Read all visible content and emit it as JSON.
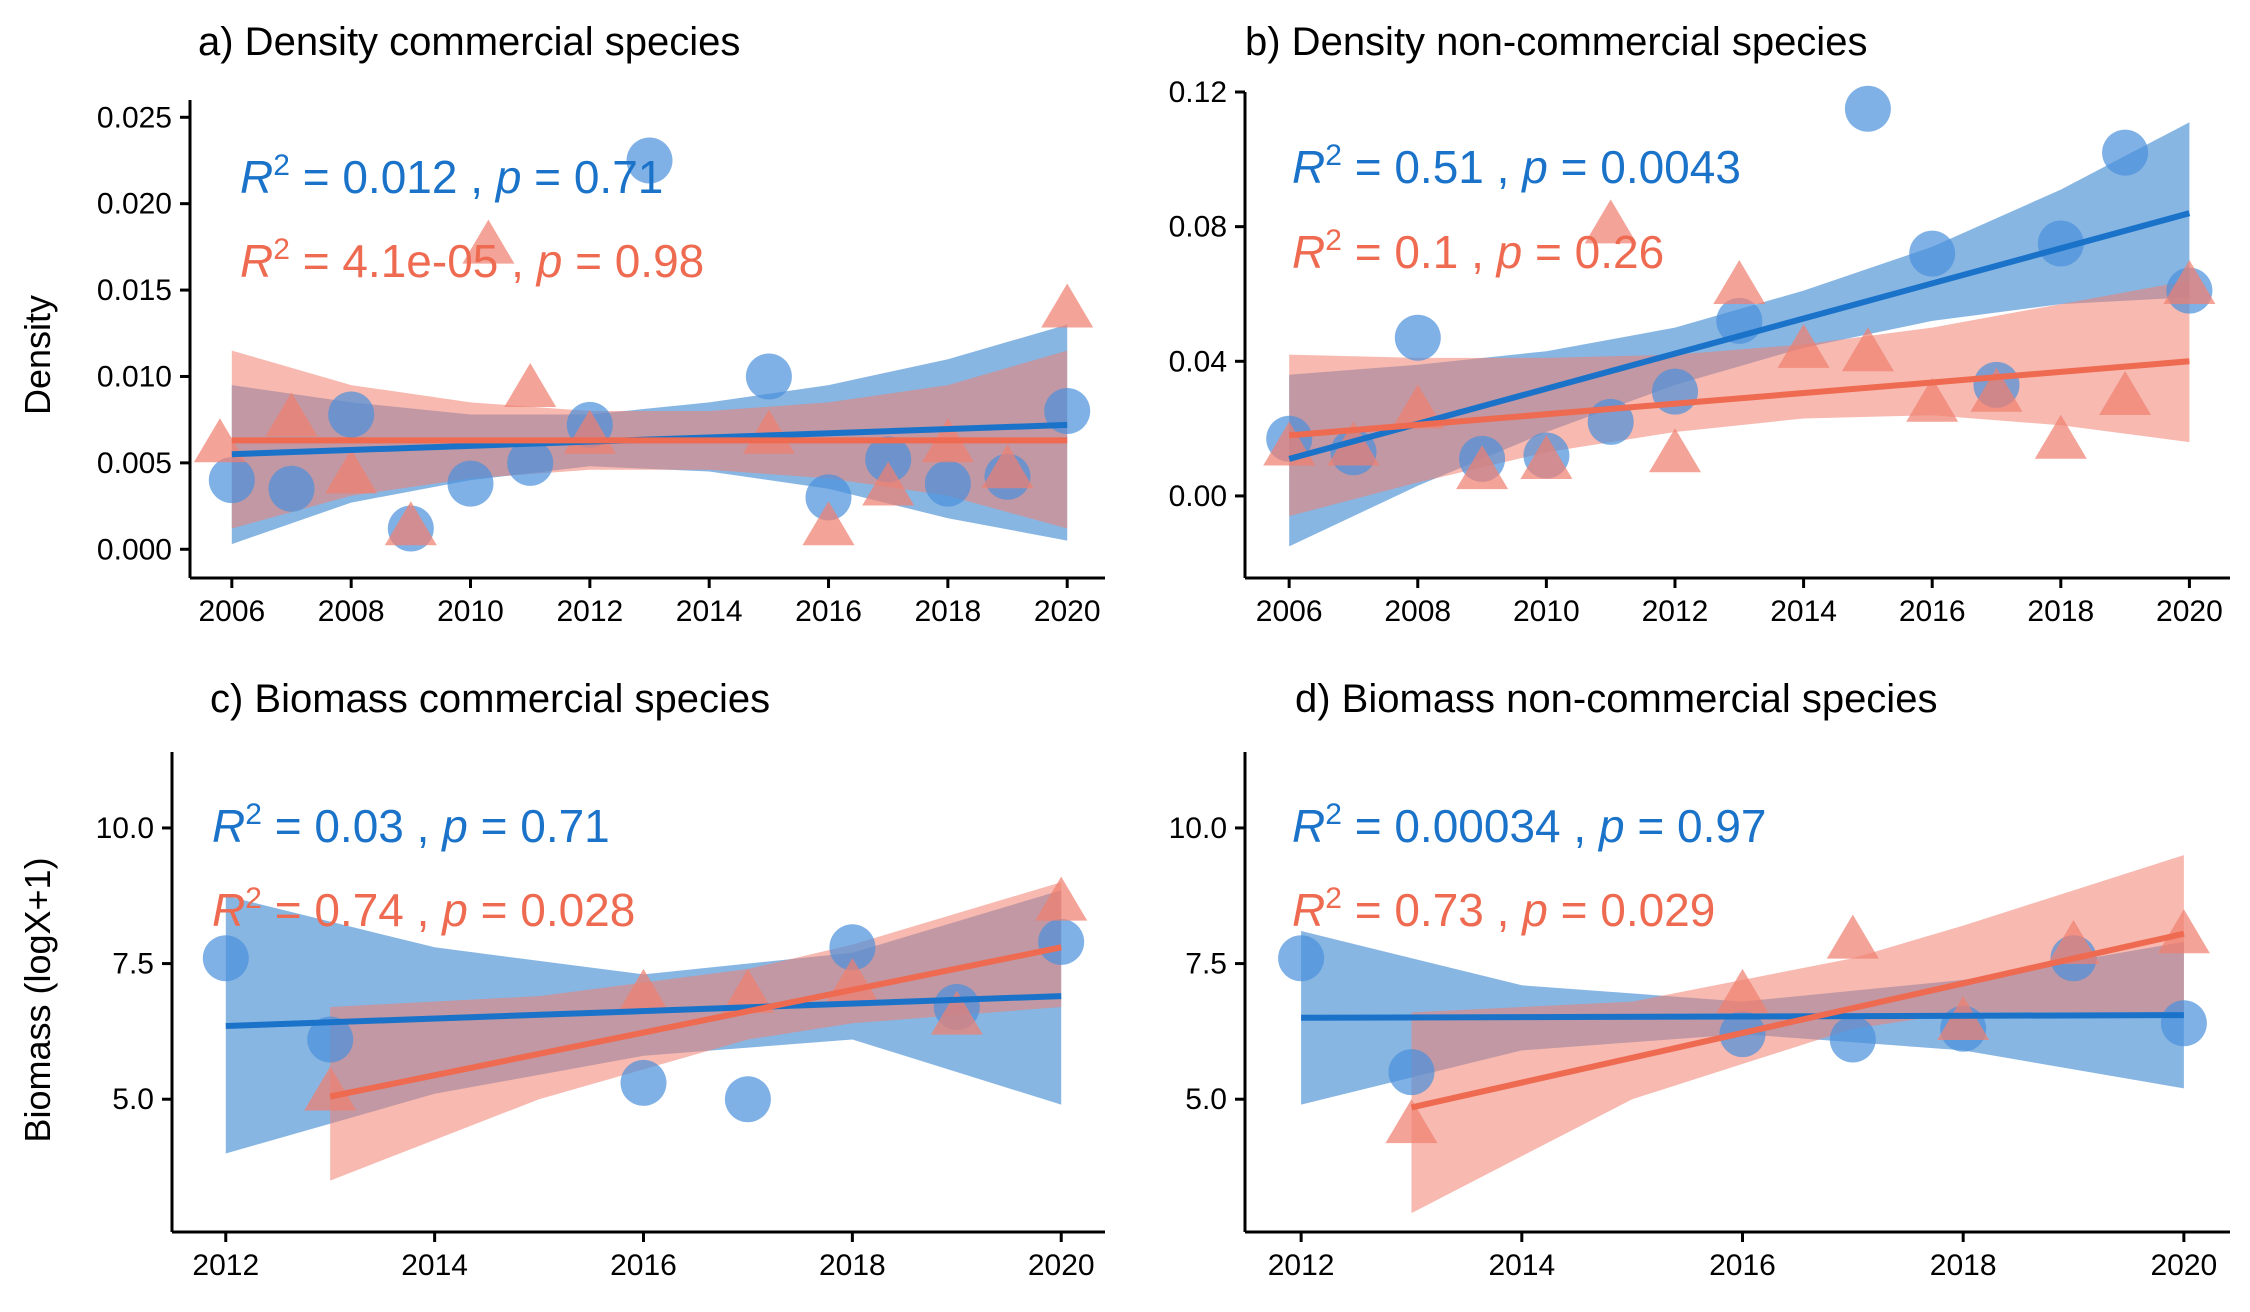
{
  "colors": {
    "blue": "#1a73c9",
    "blue_fill": "#1a73c9",
    "red": "#ee6a50",
    "red_fill": "#f08070",
    "overlap": "#8a5d82"
  },
  "y_labels": {
    "top": "Density",
    "bottom": "Biomass (logX+1)"
  },
  "chart_data": [
    {
      "id": "a",
      "type": "scatter",
      "title": "a) Density commercial species",
      "xlim": [
        2005.5,
        2020.6
      ],
      "ylim": [
        -0.0012,
        0.026
      ],
      "xticks": [
        2006,
        2008,
        2010,
        2012,
        2014,
        2016,
        2018,
        2020
      ],
      "yticks": [
        0.0,
        0.005,
        0.01,
        0.015,
        0.02,
        0.025
      ],
      "ytick_labels": [
        "0.000",
        "0.005",
        "0.010",
        "0.015",
        "0.020",
        "0.025"
      ],
      "series": [
        {
          "group": "blue",
          "marker": "circle",
          "points": [
            [
              2006,
              0.004
            ],
            [
              2007,
              0.0035
            ],
            [
              2008,
              0.0078
            ],
            [
              2009,
              0.0012
            ],
            [
              2010,
              0.0038
            ],
            [
              2011,
              0.005
            ],
            [
              2012,
              0.0072
            ],
            [
              2013,
              0.0225
            ],
            [
              2015,
              0.01
            ],
            [
              2016,
              0.003
            ],
            [
              2017,
              0.0052
            ],
            [
              2018,
              0.0038
            ],
            [
              2019,
              0.0042
            ],
            [
              2020,
              0.008
            ]
          ],
          "fit": [
            [
              2006,
              0.0055
            ],
            [
              2020,
              0.0072
            ]
          ],
          "band": [
            [
              2006,
              0.0095
            ],
            [
              2008,
              0.0085
            ],
            [
              2010,
              0.0078
            ],
            [
              2012,
              0.0078
            ],
            [
              2014,
              0.0085
            ],
            [
              2016,
              0.0095
            ],
            [
              2018,
              0.011
            ],
            [
              2020,
              0.013
            ]
          ],
          "band_low": [
            [
              2006,
              0.0003
            ],
            [
              2008,
              0.0027
            ],
            [
              2010,
              0.004
            ],
            [
              2012,
              0.0048
            ],
            [
              2014,
              0.0045
            ],
            [
              2016,
              0.0035
            ],
            [
              2018,
              0.0018
            ],
            [
              2020,
              0.0005
            ]
          ],
          "stat": {
            "r2": "0.012",
            "p": "0.71"
          }
        },
        {
          "group": "red",
          "marker": "triangle",
          "points": [
            [
              2005.8,
              0.006
            ],
            [
              2007,
              0.0075
            ],
            [
              2008,
              0.0042
            ],
            [
              2009,
              0.0012
            ],
            [
              2010.3,
              0.0175
            ],
            [
              2011,
              0.0092
            ],
            [
              2012,
              0.0065
            ],
            [
              2015,
              0.0065
            ],
            [
              2016,
              0.0012
            ],
            [
              2017,
              0.0035
            ],
            [
              2018,
              0.006
            ],
            [
              2019,
              0.0045
            ],
            [
              2020,
              0.0138
            ]
          ],
          "fit": [
            [
              2006,
              0.0063
            ],
            [
              2020,
              0.0063
            ]
          ],
          "band": [
            [
              2006,
              0.0115
            ],
            [
              2008,
              0.0095
            ],
            [
              2010,
              0.0085
            ],
            [
              2012,
              0.008
            ],
            [
              2014,
              0.008
            ],
            [
              2016,
              0.0085
            ],
            [
              2018,
              0.0095
            ],
            [
              2020,
              0.0115
            ]
          ],
          "band_low": [
            [
              2006,
              0.0012
            ],
            [
              2008,
              0.0031
            ],
            [
              2010,
              0.0041
            ],
            [
              2012,
              0.0046
            ],
            [
              2014,
              0.0046
            ],
            [
              2016,
              0.0041
            ],
            [
              2018,
              0.0031
            ],
            [
              2020,
              0.0012
            ]
          ],
          "stat": {
            "r2": "4.1e-05",
            "p": "0.98"
          }
        }
      ]
    },
    {
      "id": "b",
      "type": "scatter",
      "title": "b) Density non-commercial species",
      "xlim": [
        2005.5,
        2020.6
      ],
      "ylim": [
        -0.022,
        0.12
      ],
      "xticks": [
        2006,
        2008,
        2010,
        2012,
        2014,
        2016,
        2018,
        2020
      ],
      "yticks": [
        0.0,
        0.04,
        0.08,
        0.12
      ],
      "ytick_labels": [
        "0.00",
        "0.04",
        "0.08",
        "0.12"
      ],
      "series": [
        {
          "group": "blue",
          "marker": "circle",
          "points": [
            [
              2006,
              0.017
            ],
            [
              2007,
              0.013
            ],
            [
              2008,
              0.047
            ],
            [
              2009,
              0.011
            ],
            [
              2010,
              0.012
            ],
            [
              2011,
              0.022
            ],
            [
              2012,
              0.031
            ],
            [
              2013,
              0.052
            ],
            [
              2015,
              0.115
            ],
            [
              2016,
              0.072
            ],
            [
              2017,
              0.033
            ],
            [
              2018,
              0.075
            ],
            [
              2019,
              0.102
            ],
            [
              2020,
              0.061
            ]
          ],
          "fit": [
            [
              2006,
              0.011
            ],
            [
              2020,
              0.084
            ]
          ],
          "band": [
            [
              2006,
              0.036
            ],
            [
              2008,
              0.039
            ],
            [
              2010,
              0.043
            ],
            [
              2012,
              0.05
            ],
            [
              2014,
              0.061
            ],
            [
              2016,
              0.074
            ],
            [
              2018,
              0.091
            ],
            [
              2020,
              0.111
            ]
          ],
          "band_low": [
            [
              2006,
              -0.015
            ],
            [
              2008,
              0.003
            ],
            [
              2010,
              0.019
            ],
            [
              2012,
              0.033
            ],
            [
              2014,
              0.044
            ],
            [
              2016,
              0.052
            ],
            [
              2018,
              0.057
            ],
            [
              2020,
              0.059
            ]
          ],
          "stat": {
            "r2": "0.51",
            "p": "0.0043"
          }
        },
        {
          "group": "red",
          "marker": "triangle",
          "points": [
            [
              2006,
              0.014
            ],
            [
              2007,
              0.014
            ],
            [
              2008,
              0.025
            ],
            [
              2009,
              0.007
            ],
            [
              2010,
              0.01
            ],
            [
              2011,
              0.08
            ],
            [
              2012,
              0.012
            ],
            [
              2013,
              0.062
            ],
            [
              2014,
              0.043
            ],
            [
              2015,
              0.042
            ],
            [
              2016,
              0.027
            ],
            [
              2017,
              0.03
            ],
            [
              2018,
              0.016
            ],
            [
              2019,
              0.029
            ],
            [
              2020,
              0.062
            ]
          ],
          "fit": [
            [
              2006,
              0.018
            ],
            [
              2020,
              0.04
            ]
          ],
          "band": [
            [
              2006,
              0.042
            ],
            [
              2008,
              0.041
            ],
            [
              2010,
              0.041
            ],
            [
              2012,
              0.042
            ],
            [
              2014,
              0.045
            ],
            [
              2016,
              0.05
            ],
            [
              2018,
              0.057
            ],
            [
              2020,
              0.064
            ]
          ],
          "band_low": [
            [
              2006,
              -0.006
            ],
            [
              2008,
              0.004
            ],
            [
              2010,
              0.013
            ],
            [
              2012,
              0.019
            ],
            [
              2014,
              0.023
            ],
            [
              2016,
              0.024
            ],
            [
              2018,
              0.021
            ],
            [
              2020,
              0.016
            ]
          ],
          "stat": {
            "r2": "0.1",
            "p": "0.26"
          }
        }
      ]
    },
    {
      "id": "c",
      "type": "scatter",
      "title": "c) Biomass commercial species",
      "xlim": [
        2011.6,
        2020.4
      ],
      "ylim": [
        2.7,
        11.4
      ],
      "xticks": [
        2012,
        2014,
        2016,
        2018,
        2020
      ],
      "yticks": [
        5.0,
        7.5,
        10.0
      ],
      "ytick_labels": [
        "5.0",
        "7.5",
        "10.0"
      ],
      "series": [
        {
          "group": "blue",
          "marker": "circle",
          "points": [
            [
              2012,
              7.6
            ],
            [
              2013,
              6.1
            ],
            [
              2016,
              5.3
            ],
            [
              2017,
              5.0
            ],
            [
              2018,
              7.8
            ],
            [
              2019,
              6.7
            ],
            [
              2020,
              7.9
            ]
          ],
          "fit": [
            [
              2012,
              6.35
            ],
            [
              2020,
              6.9
            ]
          ],
          "band": [
            [
              2012,
              8.75
            ],
            [
              2014,
              7.8
            ],
            [
              2016,
              7.3
            ],
            [
              2018,
              7.7
            ],
            [
              2020,
              8.85
            ]
          ],
          "band_low": [
            [
              2012,
              4.0
            ],
            [
              2014,
              5.1
            ],
            [
              2016,
              5.8
            ],
            [
              2018,
              6.1
            ],
            [
              2020,
              4.9
            ]
          ],
          "stat": {
            "r2": "0.03",
            "p": "0.71"
          }
        },
        {
          "group": "red",
          "marker": "triangle",
          "points": [
            [
              2013,
              5.1
            ],
            [
              2016,
              6.9
            ],
            [
              2017,
              6.9
            ],
            [
              2018,
              7.1
            ],
            [
              2019,
              6.5
            ],
            [
              2020,
              8.6
            ]
          ],
          "fit": [
            [
              2013,
              5.05
            ],
            [
              2020,
              7.8
            ]
          ],
          "band": [
            [
              2013,
              6.7
            ],
            [
              2015,
              6.9
            ],
            [
              2017,
              7.4
            ],
            [
              2018,
              7.85
            ],
            [
              2020,
              9.0
            ]
          ],
          "band_low": [
            [
              2013,
              3.5
            ],
            [
              2015,
              5.0
            ],
            [
              2017,
              6.1
            ],
            [
              2018,
              6.4
            ],
            [
              2020,
              6.7
            ]
          ],
          "stat": {
            "r2": "0.74",
            "p": "0.028"
          }
        }
      ]
    },
    {
      "id": "d",
      "type": "scatter",
      "title": "d) Biomass non-commercial species",
      "xlim": [
        2011.6,
        2020.4
      ],
      "ylim": [
        2.7,
        11.4
      ],
      "xticks": [
        2012,
        2014,
        2016,
        2018,
        2020
      ],
      "yticks": [
        5.0,
        7.5,
        10.0
      ],
      "ytick_labels": [
        "5.0",
        "7.5",
        "10.0"
      ],
      "series": [
        {
          "group": "blue",
          "marker": "circle",
          "points": [
            [
              2012,
              7.6
            ],
            [
              2013,
              5.5
            ],
            [
              2016,
              6.2
            ],
            [
              2017,
              6.1
            ],
            [
              2018,
              6.3
            ],
            [
              2019,
              7.6
            ],
            [
              2020,
              6.4
            ]
          ],
          "fit": [
            [
              2012,
              6.5
            ],
            [
              2020,
              6.55
            ]
          ],
          "band": [
            [
              2012,
              8.1
            ],
            [
              2014,
              7.1
            ],
            [
              2016,
              6.8
            ],
            [
              2018,
              7.2
            ],
            [
              2020,
              7.9
            ]
          ],
          "band_low": [
            [
              2012,
              4.9
            ],
            [
              2014,
              5.9
            ],
            [
              2016,
              6.2
            ],
            [
              2018,
              5.9
            ],
            [
              2020,
              5.2
            ]
          ],
          "stat": {
            "r2": "0.00034",
            "p": "0.97"
          }
        },
        {
          "group": "red",
          "marker": "triangle",
          "points": [
            [
              2013,
              4.5
            ],
            [
              2016,
              6.9
            ],
            [
              2017,
              7.9
            ],
            [
              2018,
              6.4
            ],
            [
              2019,
              7.8
            ],
            [
              2020,
              8.0
            ]
          ],
          "fit": [
            [
              2013,
              4.85
            ],
            [
              2020,
              8.05
            ]
          ],
          "band": [
            [
              2013,
              6.6
            ],
            [
              2015,
              6.8
            ],
            [
              2017,
              7.6
            ],
            [
              2018,
              8.2
            ],
            [
              2020,
              9.5
            ]
          ],
          "band_low": [
            [
              2013,
              2.9
            ],
            [
              2015,
              5.0
            ],
            [
              2017,
              6.3
            ],
            [
              2018,
              6.6
            ],
            [
              2020,
              6.6
            ]
          ],
          "stat": {
            "r2": "0.73",
            "p": "0.029"
          }
        }
      ]
    }
  ]
}
